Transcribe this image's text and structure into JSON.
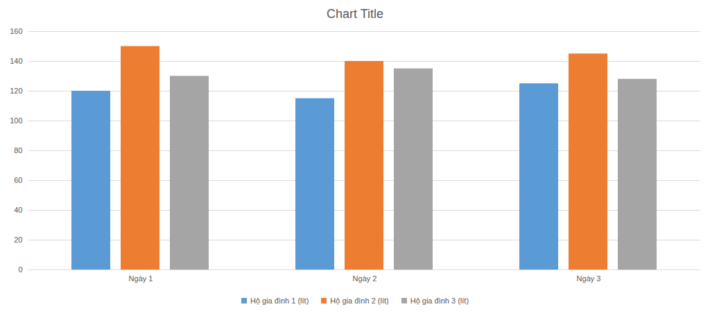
{
  "chart_data": {
    "type": "bar",
    "title": "Chart Title",
    "categories": [
      "Ngày 1",
      "Ngày 2",
      "Ngày 3"
    ],
    "series": [
      {
        "name": "Hộ gia đình 1 (lít)",
        "color": "#5b9bd5",
        "values": [
          120,
          115,
          125
        ]
      },
      {
        "name": "Hộ gia đình 2 (lít)",
        "color": "#ed7d31",
        "values": [
          150,
          140,
          145
        ]
      },
      {
        "name": "Hộ gia đình 3 (lít)",
        "color": "#a5a5a5",
        "values": [
          130,
          135,
          128
        ]
      }
    ],
    "ylim": [
      0,
      160
    ],
    "yticks": [
      0,
      20,
      40,
      60,
      80,
      100,
      120,
      140,
      160
    ],
    "grid": true,
    "legend": "bottom"
  }
}
